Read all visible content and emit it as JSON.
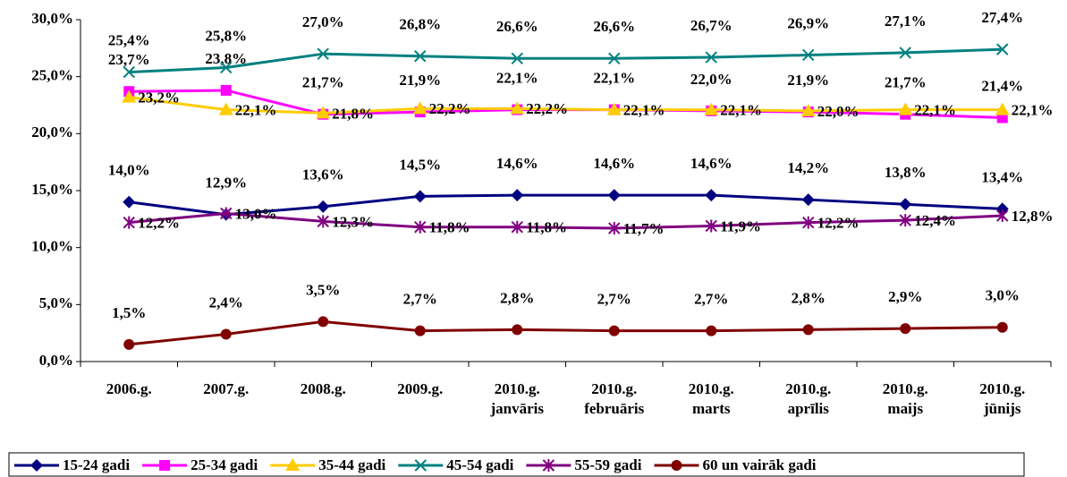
{
  "chart_data": {
    "type": "line",
    "categories": [
      [
        "2006.g."
      ],
      [
        "2007.g."
      ],
      [
        "2008.g."
      ],
      [
        "2009.g."
      ],
      [
        "2010.g.",
        "janvāris"
      ],
      [
        "2010.g.",
        "februāris"
      ],
      [
        "2010.g.",
        "marts"
      ],
      [
        "2010.g.",
        "aprīlis"
      ],
      [
        "2010.g.",
        "maijs"
      ],
      [
        "2010.g.",
        "jūnijs"
      ]
    ],
    "ylim": [
      0,
      30
    ],
    "yticks": [
      {
        "value": 0,
        "label": "0,0%"
      },
      {
        "value": 5,
        "label": "5,0%"
      },
      {
        "value": 10,
        "label": "10,0%"
      },
      {
        "value": 15,
        "label": "15,0%"
      },
      {
        "value": 20,
        "label": "20,0%"
      },
      {
        "value": 25,
        "label": "25,0%"
      },
      {
        "value": 30,
        "label": "30,0%"
      }
    ],
    "grid": false,
    "legend": "bottom",
    "series": [
      {
        "name": "15-24 gadi",
        "color": "#000080",
        "marker": "diamond",
        "values": [
          14.0,
          12.9,
          13.6,
          14.5,
          14.6,
          14.6,
          14.6,
          14.2,
          13.8,
          13.4
        ],
        "value_labels": [
          "14,0%",
          "12,9%",
          "13,6%",
          "14,5%",
          "14,6%",
          "14,6%",
          "14,6%",
          "14,2%",
          "13,8%",
          "13,4%"
        ]
      },
      {
        "name": "25-34 gadi",
        "color": "#ff00ff",
        "marker": "square",
        "values": [
          23.7,
          23.8,
          21.7,
          21.9,
          22.1,
          22.1,
          22.0,
          21.9,
          21.7,
          21.4
        ],
        "value_labels": [
          "23,7%",
          "23,8%",
          "21,7%",
          "21,9%",
          "22,1%",
          "22,1%",
          "22,0%",
          "21,9%",
          "21,7%",
          "21,4%"
        ]
      },
      {
        "name": "35-44 gadi",
        "color": "#ffcc00",
        "marker": "triangle",
        "values": [
          23.2,
          22.1,
          21.8,
          22.2,
          22.2,
          22.1,
          22.1,
          22.0,
          22.1,
          22.1
        ],
        "value_labels": [
          "23,2%",
          "22,1%",
          "21,8%",
          "22,2%",
          "22,2%",
          "22,1%",
          "22,1%",
          "22,0%",
          "22,1%",
          "22,1%"
        ]
      },
      {
        "name": "45-54 gadi",
        "color": "#008080",
        "marker": "x",
        "values": [
          25.4,
          25.8,
          27.0,
          26.8,
          26.6,
          26.6,
          26.7,
          26.9,
          27.1,
          27.4
        ],
        "value_labels": [
          "25,4%",
          "25,8%",
          "27,0%",
          "26,8%",
          "26,6%",
          "26,6%",
          "26,7%",
          "26,9%",
          "27,1%",
          "27,4%"
        ]
      },
      {
        "name": "55-59 gadi",
        "color": "#800080",
        "marker": "star",
        "values": [
          12.2,
          13.0,
          12.3,
          11.8,
          11.8,
          11.7,
          11.9,
          12.2,
          12.4,
          12.8
        ],
        "value_labels": [
          "12,2%",
          "13,0%",
          "12,3%",
          "11,8%",
          "11,8%",
          "11,7%",
          "11,9%",
          "12,2%",
          "12,4%",
          "12,8%"
        ]
      },
      {
        "name": "60 un vairāk gadi",
        "color": "#800000",
        "marker": "circle",
        "values": [
          1.5,
          2.4,
          3.5,
          2.7,
          2.8,
          2.7,
          2.7,
          2.8,
          2.9,
          3.0
        ],
        "value_labels": [
          "1,5%",
          "2,4%",
          "3,5%",
          "2,7%",
          "2,8%",
          "2,7%",
          "2,7%",
          "2,8%",
          "2,9%",
          "3,0%"
        ]
      }
    ]
  }
}
